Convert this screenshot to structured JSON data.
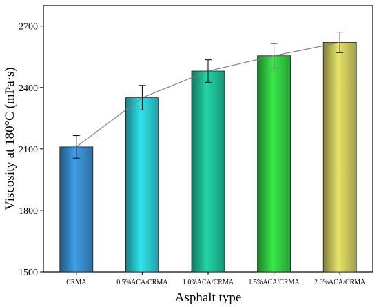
{
  "chart_data": {
    "type": "bar",
    "title": "",
    "xlabel": "Asphalt type",
    "ylabel": "Viscosity at 180°C (mPa·s)",
    "ylim": [
      1500,
      2800
    ],
    "yticks": [
      1500,
      1800,
      2100,
      2400,
      2700
    ],
    "categories": [
      "CRMA",
      "0.5%ACA/CRMA",
      "1.0%ACA/CRMA",
      "1.5%ACA/CRMA",
      "2.0%ACA/CRMA"
    ],
    "values": [
      2110,
      2350,
      2480,
      2555,
      2620
    ],
    "errors": [
      55,
      60,
      55,
      60,
      50
    ],
    "bar_colors": [
      "#3f9fe6",
      "#2fe4ec",
      "#22d6a8",
      "#38e84a",
      "#e8e46a"
    ],
    "trend_line": true,
    "grid": false,
    "legend": "none"
  }
}
